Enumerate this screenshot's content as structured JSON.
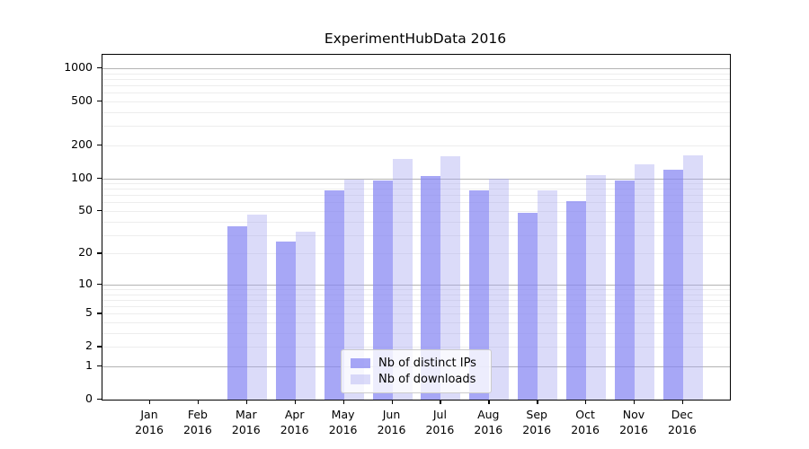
{
  "chart_data": {
    "type": "bar",
    "title": "ExperimentHubData 2016",
    "categories": [
      "Jan",
      "Feb",
      "Mar",
      "Apr",
      "May",
      "Jun",
      "Jul",
      "Aug",
      "Sep",
      "Oct",
      "Nov",
      "Dec"
    ],
    "year": "2016",
    "series": [
      {
        "name": "Nb of distinct IPs",
        "color": "rgba(133,133,242,0.72)",
        "values": [
          0,
          0,
          36,
          26,
          78,
          96,
          105,
          78,
          48,
          62,
          95,
          120
        ]
      },
      {
        "name": "Nb of downloads",
        "color": "rgba(165,165,240,0.40)",
        "values": [
          0,
          0,
          46,
          32,
          98,
          150,
          158,
          99,
          78,
          107,
          133,
          162
        ]
      }
    ],
    "y_ticks": [
      0,
      1,
      2,
      5,
      10,
      20,
      50,
      100,
      200,
      500,
      1000
    ],
    "y_scale": "log1p",
    "ylim": [
      0,
      1300
    ],
    "grid": "horizontal; faint minor lines 2-9 per decade; gray major lines at 1, 10, 100, 1000",
    "legend_position": "lower center"
  }
}
